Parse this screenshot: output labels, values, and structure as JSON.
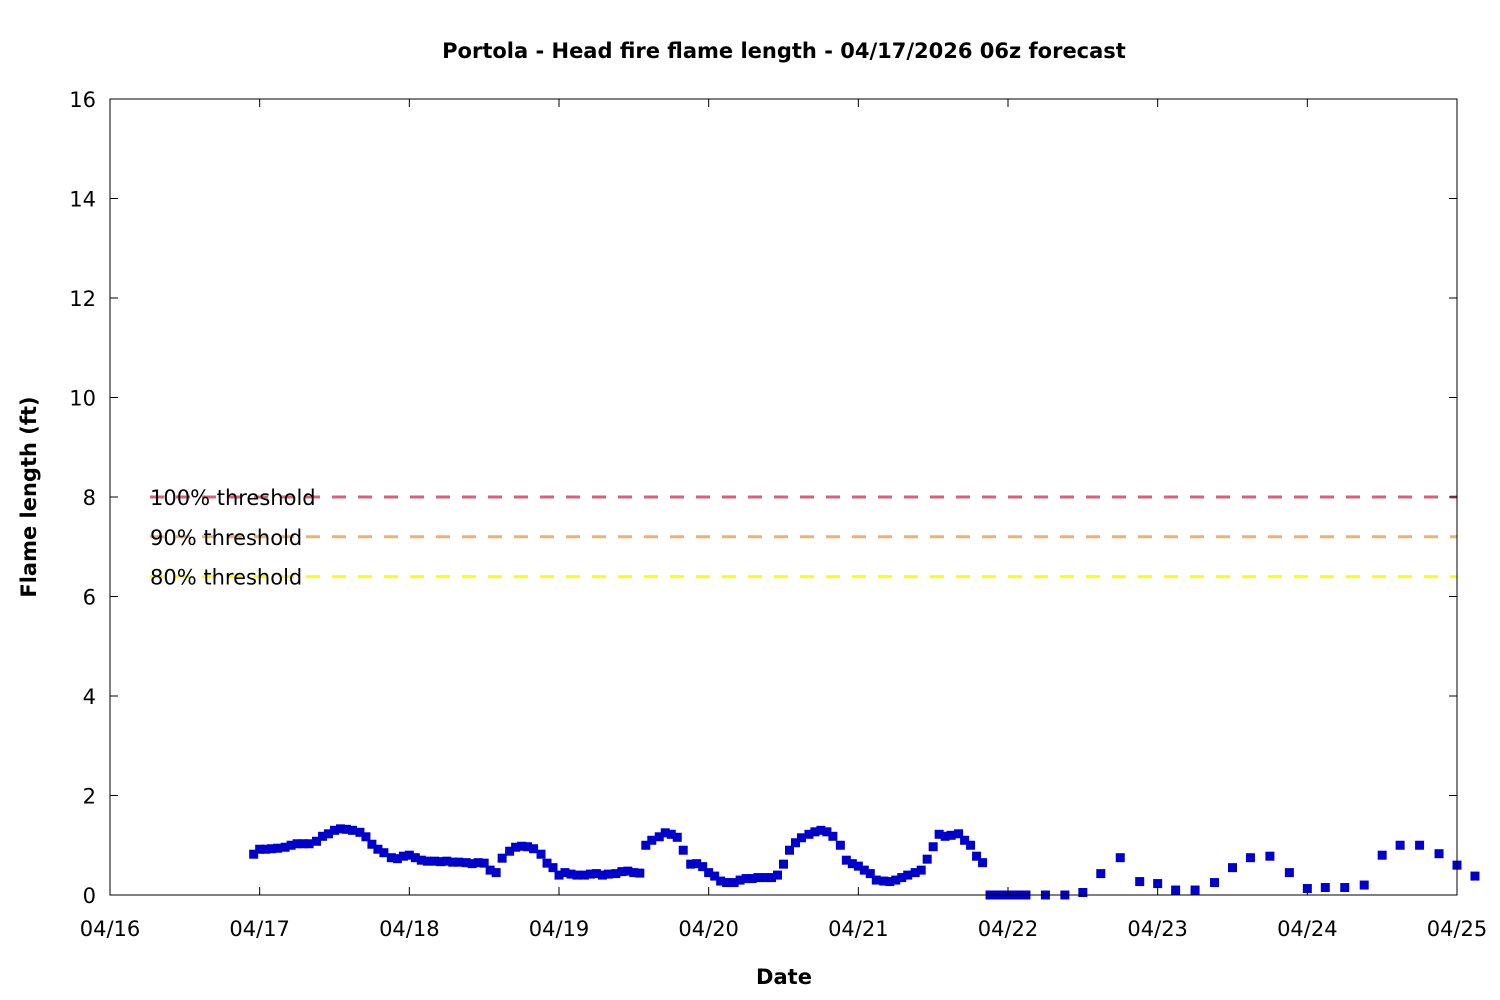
{
  "chart_data": {
    "type": "scatter",
    "title": "Portola - Head fire flame length - 04/17/2026 06z forecast",
    "xlabel": "Date",
    "ylabel": "Flame length (ft)",
    "x_ticks": [
      "04/16",
      "04/17",
      "04/18",
      "04/19",
      "04/20",
      "04/21",
      "04/22",
      "04/23",
      "04/24",
      "04/25"
    ],
    "y_ticks": [
      0,
      2,
      4,
      6,
      8,
      10,
      12,
      14,
      16
    ],
    "xlim_days": [
      0,
      9
    ],
    "ylim": [
      0,
      16
    ],
    "grid": false,
    "legend_position": "left",
    "colors": {
      "points": "#0000cc",
      "frame": "#000000"
    },
    "thresholds": [
      {
        "name": "100% threshold",
        "value": 8.0,
        "color": "#d9607a"
      },
      {
        "name": "90% threshold",
        "value": 7.2,
        "color": "#f0b070"
      },
      {
        "name": "80% threshold",
        "value": 6.4,
        "color": "#ffff00"
      }
    ],
    "series": [
      {
        "values": [
          [
            0.96,
            0.82
          ],
          [
            1.0,
            0.92
          ],
          [
            1.04,
            0.92
          ],
          [
            1.08,
            0.93
          ],
          [
            1.12,
            0.94
          ],
          [
            1.17,
            0.96
          ],
          [
            1.21,
            1.0
          ],
          [
            1.25,
            1.03
          ],
          [
            1.29,
            1.03
          ],
          [
            1.33,
            1.03
          ],
          [
            1.38,
            1.08
          ],
          [
            1.42,
            1.18
          ],
          [
            1.46,
            1.23
          ],
          [
            1.5,
            1.3
          ],
          [
            1.54,
            1.33
          ],
          [
            1.58,
            1.32
          ],
          [
            1.62,
            1.3
          ],
          [
            1.67,
            1.26
          ],
          [
            1.71,
            1.17
          ],
          [
            1.75,
            1.02
          ],
          [
            1.79,
            0.92
          ],
          [
            1.83,
            0.85
          ],
          [
            1.88,
            0.75
          ],
          [
            1.92,
            0.73
          ],
          [
            1.96,
            0.78
          ],
          [
            2.0,
            0.8
          ],
          [
            2.04,
            0.75
          ],
          [
            2.08,
            0.7
          ],
          [
            2.12,
            0.68
          ],
          [
            2.17,
            0.68
          ],
          [
            2.21,
            0.67
          ],
          [
            2.25,
            0.68
          ],
          [
            2.29,
            0.66
          ],
          [
            2.33,
            0.66
          ],
          [
            2.38,
            0.65
          ],
          [
            2.42,
            0.63
          ],
          [
            2.46,
            0.65
          ],
          [
            2.5,
            0.64
          ],
          [
            2.54,
            0.5
          ],
          [
            2.58,
            0.45
          ],
          [
            2.62,
            0.74
          ],
          [
            2.67,
            0.88
          ],
          [
            2.71,
            0.96
          ],
          [
            2.75,
            0.98
          ],
          [
            2.79,
            0.97
          ],
          [
            2.83,
            0.93
          ],
          [
            2.88,
            0.82
          ],
          [
            2.92,
            0.64
          ],
          [
            2.96,
            0.55
          ],
          [
            3.0,
            0.4
          ],
          [
            3.04,
            0.45
          ],
          [
            3.08,
            0.42
          ],
          [
            3.12,
            0.4
          ],
          [
            3.17,
            0.4
          ],
          [
            3.21,
            0.42
          ],
          [
            3.25,
            0.43
          ],
          [
            3.29,
            0.4
          ],
          [
            3.33,
            0.42
          ],
          [
            3.38,
            0.43
          ],
          [
            3.42,
            0.47
          ],
          [
            3.46,
            0.48
          ],
          [
            3.5,
            0.45
          ],
          [
            3.54,
            0.44
          ],
          [
            3.58,
            1.0
          ],
          [
            3.62,
            1.1
          ],
          [
            3.67,
            1.17
          ],
          [
            3.71,
            1.25
          ],
          [
            3.75,
            1.22
          ],
          [
            3.79,
            1.16
          ],
          [
            3.83,
            0.9
          ],
          [
            3.88,
            0.62
          ],
          [
            3.92,
            0.63
          ],
          [
            3.96,
            0.57
          ],
          [
            4.0,
            0.45
          ],
          [
            4.04,
            0.38
          ],
          [
            4.08,
            0.28
          ],
          [
            4.12,
            0.25
          ],
          [
            4.17,
            0.25
          ],
          [
            4.21,
            0.3
          ],
          [
            4.25,
            0.33
          ],
          [
            4.29,
            0.33
          ],
          [
            4.33,
            0.35
          ],
          [
            4.38,
            0.35
          ],
          [
            4.42,
            0.35
          ],
          [
            4.46,
            0.4
          ],
          [
            4.5,
            0.62
          ],
          [
            4.54,
            0.9
          ],
          [
            4.58,
            1.05
          ],
          [
            4.62,
            1.15
          ],
          [
            4.67,
            1.22
          ],
          [
            4.71,
            1.27
          ],
          [
            4.75,
            1.3
          ],
          [
            4.79,
            1.27
          ],
          [
            4.83,
            1.18
          ],
          [
            4.88,
            1.0
          ],
          [
            4.92,
            0.7
          ],
          [
            4.96,
            0.63
          ],
          [
            5.0,
            0.58
          ],
          [
            5.04,
            0.5
          ],
          [
            5.08,
            0.43
          ],
          [
            5.12,
            0.3
          ],
          [
            5.17,
            0.28
          ],
          [
            5.21,
            0.27
          ],
          [
            5.25,
            0.3
          ],
          [
            5.29,
            0.35
          ],
          [
            5.33,
            0.4
          ],
          [
            5.38,
            0.45
          ],
          [
            5.42,
            0.5
          ],
          [
            5.46,
            0.72
          ],
          [
            5.5,
            0.97
          ],
          [
            5.54,
            1.22
          ],
          [
            5.58,
            1.18
          ],
          [
            5.62,
            1.2
          ],
          [
            5.67,
            1.23
          ],
          [
            5.71,
            1.1
          ],
          [
            5.75,
            1.0
          ],
          [
            5.79,
            0.78
          ],
          [
            5.83,
            0.65
          ],
          [
            5.88,
            0.0
          ],
          [
            5.92,
            0.0
          ],
          [
            5.96,
            0.0
          ],
          [
            6.0,
            0.0
          ],
          [
            6.04,
            0.0
          ],
          [
            6.08,
            0.0
          ],
          [
            6.12,
            0.0
          ],
          [
            6.25,
            0.0
          ],
          [
            6.38,
            0.0
          ],
          [
            6.5,
            0.05
          ],
          [
            6.62,
            0.43
          ],
          [
            6.75,
            0.75
          ],
          [
            6.88,
            0.27
          ],
          [
            7.0,
            0.23
          ],
          [
            7.12,
            0.1
          ],
          [
            7.25,
            0.1
          ],
          [
            7.38,
            0.25
          ],
          [
            7.5,
            0.55
          ],
          [
            7.62,
            0.75
          ],
          [
            7.75,
            0.78
          ],
          [
            7.88,
            0.45
          ],
          [
            8.0,
            0.13
          ],
          [
            8.12,
            0.15
          ],
          [
            8.25,
            0.15
          ],
          [
            8.38,
            0.2
          ],
          [
            8.5,
            0.8
          ],
          [
            8.62,
            1.0
          ],
          [
            8.75,
            1.0
          ],
          [
            8.88,
            0.83
          ],
          [
            9.0,
            0.6
          ],
          [
            9.12,
            0.38
          ]
        ]
      }
    ]
  }
}
